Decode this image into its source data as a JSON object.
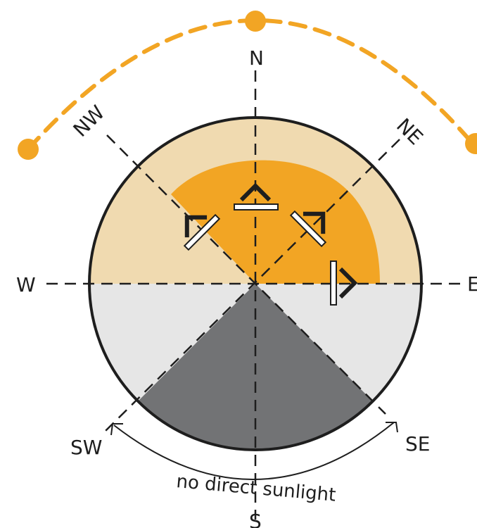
{
  "compass": {
    "north": "N",
    "north_east": "NE",
    "east": "E",
    "south_east": "SE",
    "south": "S",
    "south_west": "SW",
    "west": "W",
    "north_west": "NW"
  },
  "caption": "no direct sunlight",
  "colors": {
    "sun": "#f2a524",
    "sun_light": "#f0dab0",
    "shade_light": "#e6e6e6",
    "shade_dark": "#727375",
    "line": "#1e1e1e"
  }
}
